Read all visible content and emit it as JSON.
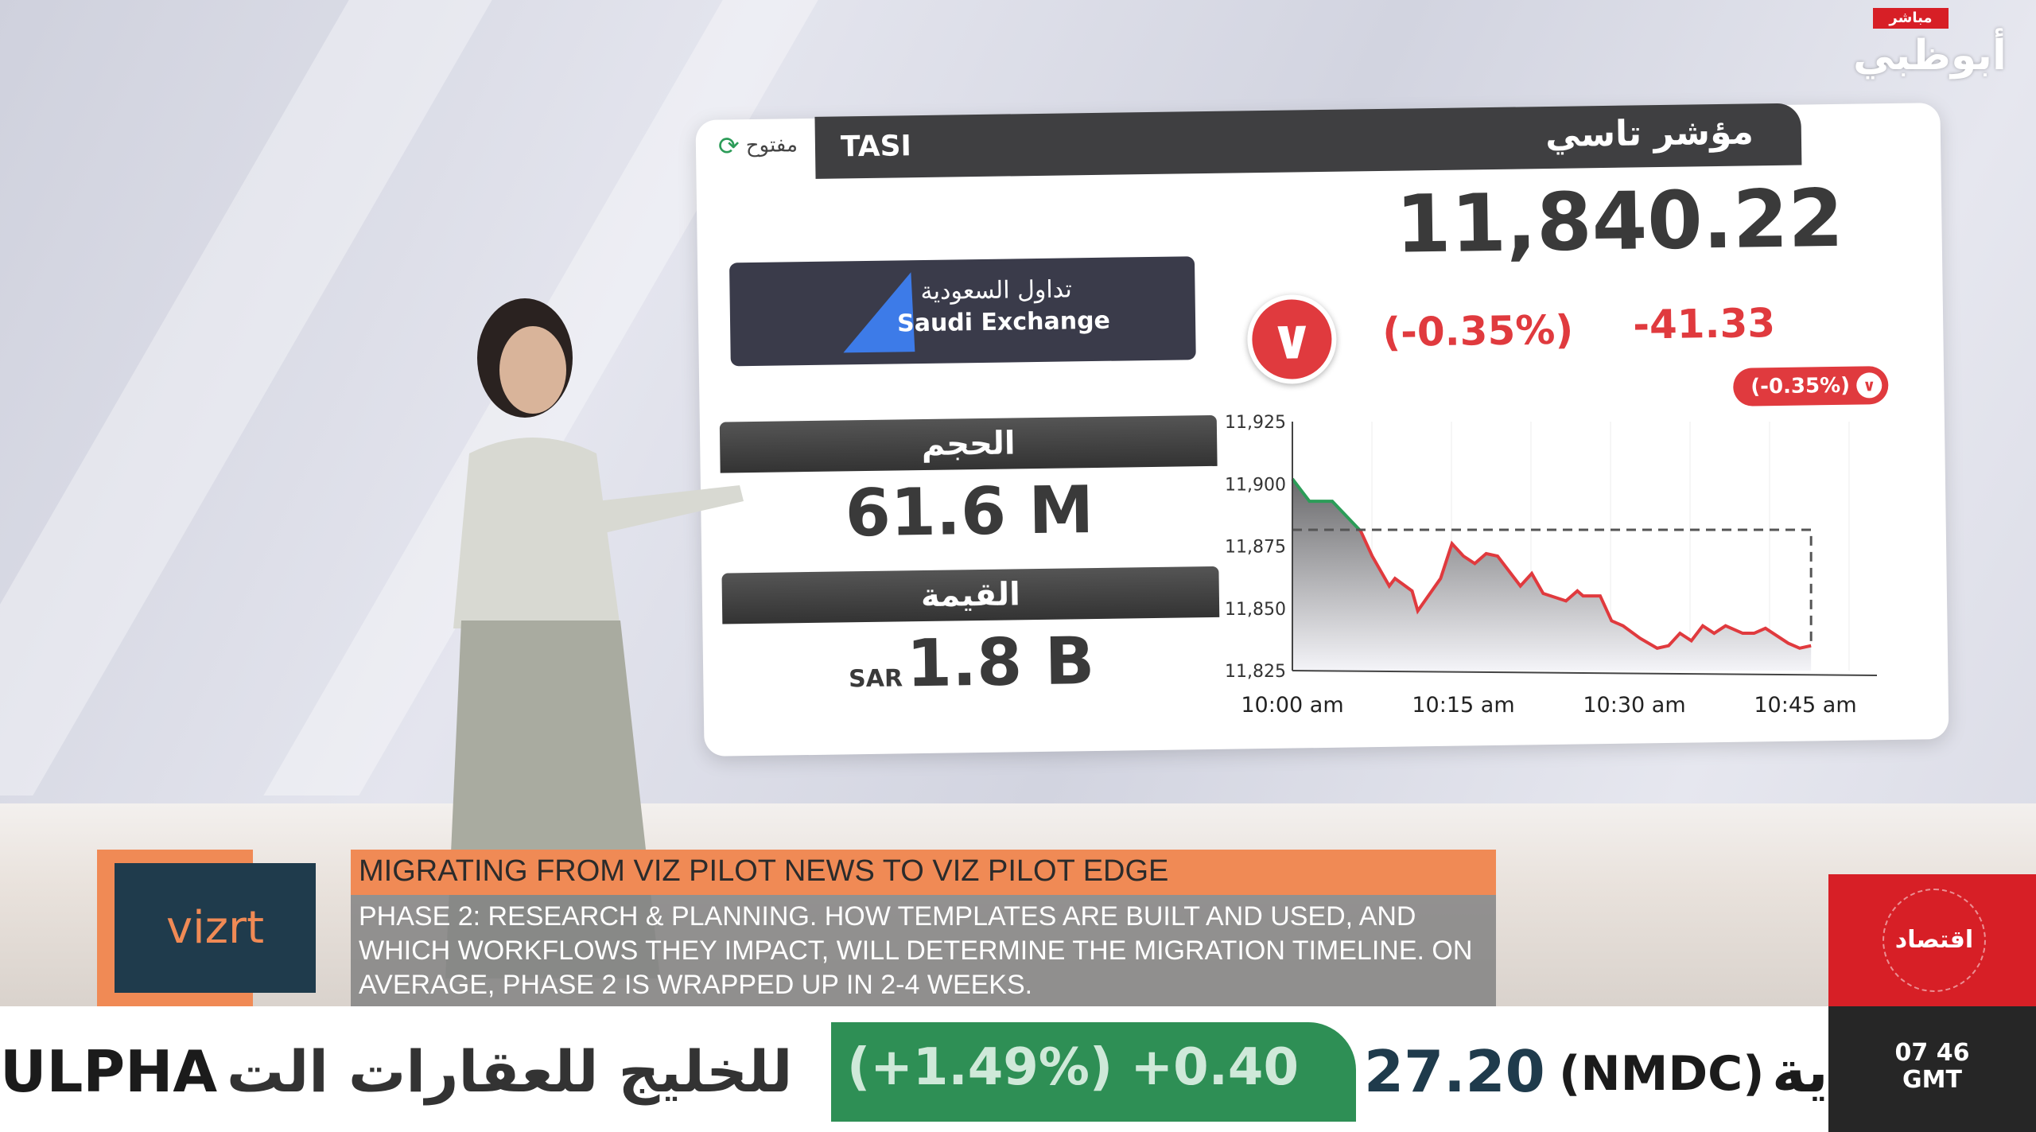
{
  "channel": {
    "live_tag": "مباشر",
    "name": "أبوظبي",
    "section": "اقتصاد",
    "time": "07 46",
    "timezone": "GMT"
  },
  "card": {
    "status": "مفتوح",
    "symbol": "TASI",
    "title": "مؤشر تاسي",
    "price": "11,840.22",
    "change_pct": "(-0.35%)",
    "change": "-41.33",
    "badge": "(-0.35%)",
    "logo_ar": "تداول السعودية",
    "logo_en": "Saudi Exchange",
    "volume_label": "الحجم",
    "volume": "61.6 M",
    "value_label": "القيمة",
    "value_currency": "SAR",
    "value": "1.8 B",
    "colors": {
      "down": "#e03a3e",
      "up": "#2c9c58"
    }
  },
  "chart_data": {
    "type": "area",
    "yticks": [
      "11,825",
      "11,850",
      "11,875",
      "11,900",
      "11,925"
    ],
    "ylim": [
      11825,
      11925
    ],
    "xticks": [
      "10:00 am",
      "10:15 am",
      "10:30 am",
      "10:45 am"
    ],
    "previous_close": 11881.55,
    "grid": true,
    "x": [
      "10:00:00",
      "10:01:30",
      "10:03:30",
      "10:06:00",
      "10:07:00",
      "10:08:30",
      "10:09:00",
      "10:10:30",
      "10:11:00",
      "10:13:00",
      "10:14:00",
      "10:15:00",
      "10:16:00",
      "10:17:00",
      "10:18:00",
      "10:20:00",
      "10:21:00",
      "10:22:00",
      "10:24:00",
      "10:25:00",
      "10:25:30",
      "10:27:00",
      "10:28:00",
      "10:29:00",
      "10:30:30",
      "10:32:00",
      "10:33:00",
      "10:34:00",
      "10:35:00",
      "10:36:00",
      "10:37:00",
      "10:38:00",
      "10:39:30",
      "10:40:30",
      "10:41:30",
      "10:42:30",
      "10:43:30",
      "10:44:30",
      "10:45:30"
    ],
    "y": [
      11902,
      11893,
      11893,
      11881,
      11871,
      11859,
      11862,
      11857,
      11849,
      11862,
      11876,
      11871,
      11868,
      11872,
      11871,
      11859,
      11864,
      11856,
      11853,
      11857,
      11855,
      11855,
      11845,
      11843,
      11838,
      11834,
      11835,
      11840,
      11837,
      11843,
      11840,
      11843,
      11840,
      11840,
      11842,
      11839,
      11836,
      11834,
      11835
    ]
  },
  "ticker": {
    "items": [
      "ULPHA",
      "للخليج للعقارات الت",
      "(+1.49%) +0.40",
      "27.20",
      "(NMDC)",
      "ية"
    ]
  },
  "lower_third": {
    "logo": "vizrt",
    "title": "MIGRATING FROM VIZ PILOT NEWS TO VIZ PILOT EDGE",
    "body": "PHASE 2: RESEARCH & PLANNING. HOW TEMPLATES ARE BUILT AND USED, AND WHICH WORKFLOWS THEY IMPACT, WILL DETERMINE THE MIGRATION TIMELINE. ON AVERAGE, PHASE 2 IS WRAPPED UP IN 2-4 WEEKS."
  }
}
